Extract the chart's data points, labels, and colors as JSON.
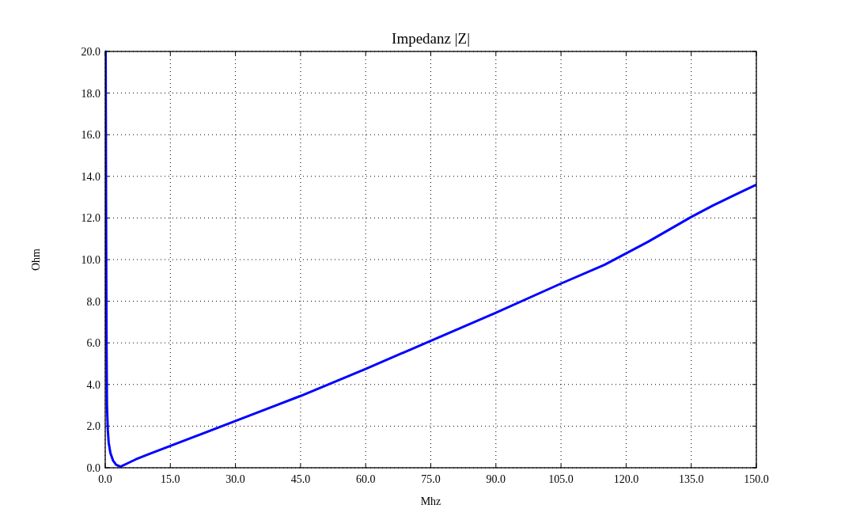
{
  "chart_data": {
    "type": "line",
    "title": "Impedanz |Z|",
    "xlabel": "Mhz",
    "ylabel": "Ohm",
    "x": [
      0.1,
      0.2,
      0.3,
      0.4,
      0.6,
      0.8,
      1.2,
      1.8,
      2.5,
      3.5,
      5,
      7,
      10,
      15,
      20,
      30,
      45,
      60,
      75,
      90,
      105,
      115,
      120,
      125,
      130,
      135,
      140,
      145,
      150
    ],
    "series": [
      {
        "color": "#0000ff",
        "values": [
          20,
          12,
          6,
          3,
          1.8,
          1.2,
          0.7,
          0.35,
          0.15,
          0.05,
          0.2,
          0.4,
          0.65,
          1.05,
          1.45,
          2.25,
          3.45,
          4.75,
          6.1,
          7.45,
          8.85,
          9.75,
          10.3,
          10.85,
          11.45,
          12.05,
          12.6,
          13.1,
          13.6
        ]
      }
    ],
    "xlim": [
      0,
      150
    ],
    "ylim": [
      0,
      20
    ],
    "xticks": [
      {
        "value": 0,
        "label": "0.0"
      },
      {
        "value": 15,
        "label": "15.0"
      },
      {
        "value": 30,
        "label": "30.0"
      },
      {
        "value": 45,
        "label": "45.0"
      },
      {
        "value": 60,
        "label": "60.0"
      },
      {
        "value": 75,
        "label": "75.0"
      },
      {
        "value": 90,
        "label": "90.0"
      },
      {
        "value": 105,
        "label": "105.0"
      },
      {
        "value": 120,
        "label": "120.0"
      },
      {
        "value": 135,
        "label": "135.0"
      },
      {
        "value": 150,
        "label": "150.0"
      }
    ],
    "yticks": [
      {
        "value": 0,
        "label": "0.0"
      },
      {
        "value": 2,
        "label": "2.0"
      },
      {
        "value": 4,
        "label": "4.0"
      },
      {
        "value": 6,
        "label": "6.0"
      },
      {
        "value": 8,
        "label": "8.0"
      },
      {
        "value": 10,
        "label": "10.0"
      },
      {
        "value": 12,
        "label": "12.0"
      },
      {
        "value": 14,
        "label": "14.0"
      },
      {
        "value": 16,
        "label": "16.0"
      },
      {
        "value": 18,
        "label": "18.0"
      },
      {
        "value": 20,
        "label": "20.0"
      }
    ],
    "grid": true,
    "line_style": "solid",
    "marker": "none"
  }
}
